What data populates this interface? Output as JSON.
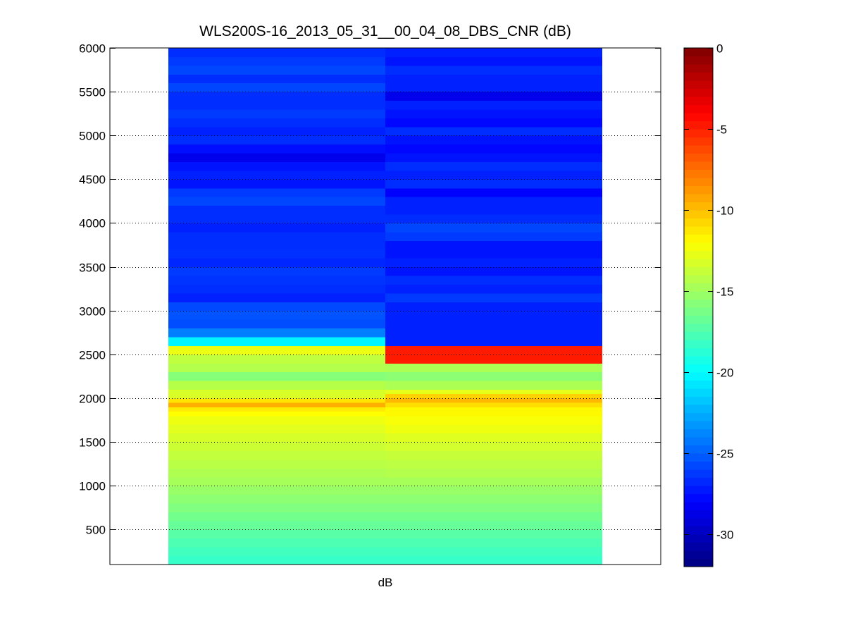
{
  "chart_data": {
    "type": "heatmap",
    "title": "WLS200S-16_2013_05_31__00_04_08_DBS_CNR (dB)",
    "xlabel": "dB",
    "ylabel": "",
    "ylim": [
      100,
      6000
    ],
    "yticks": [
      500,
      1000,
      1500,
      2000,
      2500,
      3000,
      3500,
      4000,
      4500,
      5000,
      5500,
      6000
    ],
    "grid": "y-dotted",
    "colormap": "jet",
    "colorbar": {
      "clim": [
        -32,
        0
      ],
      "ticks": [
        0,
        -5,
        -10,
        -15,
        -20,
        -25,
        -30
      ],
      "placement": "right"
    },
    "row_height_m": 100,
    "columns": [
      {
        "bins": [
          {
            "y0": 100,
            "y1": 200,
            "v": -18.3
          },
          {
            "y0": 200,
            "y1": 300,
            "v": -18.0
          },
          {
            "y0": 300,
            "y1": 400,
            "v": -17.6
          },
          {
            "y0": 400,
            "y1": 500,
            "v": -17.2
          },
          {
            "y0": 500,
            "y1": 600,
            "v": -16.8
          },
          {
            "y0": 600,
            "y1": 700,
            "v": -16.4
          },
          {
            "y0": 700,
            "y1": 800,
            "v": -16.0
          },
          {
            "y0": 800,
            "y1": 900,
            "v": -15.6
          },
          {
            "y0": 900,
            "y1": 1000,
            "v": -15.2
          },
          {
            "y0": 1000,
            "y1": 1100,
            "v": -14.8
          },
          {
            "y0": 1100,
            "y1": 1200,
            "v": -14.5
          },
          {
            "y0": 1200,
            "y1": 1300,
            "v": -14.2
          },
          {
            "y0": 1300,
            "y1": 1400,
            "v": -13.9
          },
          {
            "y0": 1400,
            "y1": 1500,
            "v": -13.6
          },
          {
            "y0": 1500,
            "y1": 1600,
            "v": -13.3
          },
          {
            "y0": 1600,
            "y1": 1700,
            "v": -12.9
          },
          {
            "y0": 1700,
            "y1": 1800,
            "v": -12.5
          },
          {
            "y0": 1800,
            "y1": 1850,
            "v": -12.0
          },
          {
            "y0": 1850,
            "y1": 1900,
            "v": -11.4
          },
          {
            "y0": 1900,
            "y1": 1950,
            "v": -9.5
          },
          {
            "y0": 1950,
            "y1": 2000,
            "v": -11.2
          },
          {
            "y0": 2000,
            "y1": 2100,
            "v": -13.2
          },
          {
            "y0": 2100,
            "y1": 2200,
            "v": -14.3
          },
          {
            "y0": 2200,
            "y1": 2300,
            "v": -15.8
          },
          {
            "y0": 2300,
            "y1": 2400,
            "v": -14.4
          },
          {
            "y0": 2400,
            "y1": 2500,
            "v": -14.0
          },
          {
            "y0": 2500,
            "y1": 2600,
            "v": -12.6
          },
          {
            "y0": 2600,
            "y1": 2700,
            "v": -20.3
          },
          {
            "y0": 2700,
            "y1": 2800,
            "v": -24.0
          },
          {
            "y0": 2800,
            "y1": 2900,
            "v": -25.6
          },
          {
            "y0": 2900,
            "y1": 3000,
            "v": -25.4
          },
          {
            "y0": 3000,
            "y1": 3100,
            "v": -25.7
          },
          {
            "y0": 3100,
            "y1": 3200,
            "v": -27.0
          },
          {
            "y0": 3200,
            "y1": 3300,
            "v": -26.6
          },
          {
            "y0": 3300,
            "y1": 3400,
            "v": -26.4
          },
          {
            "y0": 3400,
            "y1": 3500,
            "v": -26.2
          },
          {
            "y0": 3500,
            "y1": 3600,
            "v": -26.8
          },
          {
            "y0": 3600,
            "y1": 3700,
            "v": -26.5
          },
          {
            "y0": 3700,
            "y1": 3800,
            "v": -26.6
          },
          {
            "y0": 3800,
            "y1": 3900,
            "v": -26.6
          },
          {
            "y0": 3900,
            "y1": 4000,
            "v": -27.0
          },
          {
            "y0": 4000,
            "y1": 4100,
            "v": -26.6
          },
          {
            "y0": 4100,
            "y1": 4200,
            "v": -26.6
          },
          {
            "y0": 4200,
            "y1": 4300,
            "v": -25.8
          },
          {
            "y0": 4300,
            "y1": 4400,
            "v": -26.2
          },
          {
            "y0": 4400,
            "y1": 4500,
            "v": -27.4
          },
          {
            "y0": 4500,
            "y1": 4600,
            "v": -27.0
          },
          {
            "y0": 4600,
            "y1": 4700,
            "v": -27.4
          },
          {
            "y0": 4700,
            "y1": 4800,
            "v": -28.6
          },
          {
            "y0": 4800,
            "y1": 4900,
            "v": -27.6
          },
          {
            "y0": 4900,
            "y1": 5000,
            "v": -26.6
          },
          {
            "y0": 5000,
            "y1": 5100,
            "v": -27.0
          },
          {
            "y0": 5100,
            "y1": 5200,
            "v": -26.6
          },
          {
            "y0": 5200,
            "y1": 5300,
            "v": -26.2
          },
          {
            "y0": 5300,
            "y1": 5400,
            "v": -26.6
          },
          {
            "y0": 5400,
            "y1": 5500,
            "v": -26.6
          },
          {
            "y0": 5500,
            "y1": 5600,
            "v": -25.8
          },
          {
            "y0": 5600,
            "y1": 5700,
            "v": -26.6
          },
          {
            "y0": 5700,
            "y1": 5800,
            "v": -25.8
          },
          {
            "y0": 5800,
            "y1": 5900,
            "v": -26.2
          },
          {
            "y0": 5900,
            "y1": 6000,
            "v": -26.6
          }
        ]
      },
      {
        "bins": [
          {
            "y0": 100,
            "y1": 200,
            "v": -18.3
          },
          {
            "y0": 200,
            "y1": 300,
            "v": -18.0
          },
          {
            "y0": 300,
            "y1": 400,
            "v": -17.6
          },
          {
            "y0": 400,
            "y1": 500,
            "v": -17.2
          },
          {
            "y0": 500,
            "y1": 600,
            "v": -16.8
          },
          {
            "y0": 600,
            "y1": 700,
            "v": -16.4
          },
          {
            "y0": 700,
            "y1": 800,
            "v": -16.0
          },
          {
            "y0": 800,
            "y1": 900,
            "v": -15.6
          },
          {
            "y0": 900,
            "y1": 1000,
            "v": -15.2
          },
          {
            "y0": 1000,
            "y1": 1100,
            "v": -14.8
          },
          {
            "y0": 1100,
            "y1": 1200,
            "v": -14.4
          },
          {
            "y0": 1200,
            "y1": 1300,
            "v": -14.1
          },
          {
            "y0": 1300,
            "y1": 1400,
            "v": -13.8
          },
          {
            "y0": 1400,
            "y1": 1500,
            "v": -13.4
          },
          {
            "y0": 1500,
            "y1": 1600,
            "v": -13.0
          },
          {
            "y0": 1600,
            "y1": 1700,
            "v": -12.5
          },
          {
            "y0": 1700,
            "y1": 1800,
            "v": -12.2
          },
          {
            "y0": 1800,
            "y1": 1900,
            "v": -11.8
          },
          {
            "y0": 1900,
            "y1": 1950,
            "v": -11.0
          },
          {
            "y0": 1950,
            "y1": 2000,
            "v": -9.8
          },
          {
            "y0": 2000,
            "y1": 2050,
            "v": -10.6
          },
          {
            "y0": 2050,
            "y1": 2100,
            "v": -12.8
          },
          {
            "y0": 2100,
            "y1": 2200,
            "v": -14.6
          },
          {
            "y0": 2200,
            "y1": 2300,
            "v": -15.6
          },
          {
            "y0": 2300,
            "y1": 2400,
            "v": -14.6
          },
          {
            "y0": 2400,
            "y1": 2500,
            "v": -4.8
          },
          {
            "y0": 2500,
            "y1": 2600,
            "v": -4.8
          },
          {
            "y0": 2600,
            "y1": 2700,
            "v": -27.0
          },
          {
            "y0": 2700,
            "y1": 2800,
            "v": -27.0
          },
          {
            "y0": 2800,
            "y1": 2900,
            "v": -27.0
          },
          {
            "y0": 2900,
            "y1": 3000,
            "v": -27.0
          },
          {
            "y0": 3000,
            "y1": 3100,
            "v": -27.0
          },
          {
            "y0": 3100,
            "y1": 3200,
            "v": -26.2
          },
          {
            "y0": 3200,
            "y1": 3300,
            "v": -27.0
          },
          {
            "y0": 3300,
            "y1": 3400,
            "v": -26.6
          },
          {
            "y0": 3400,
            "y1": 3500,
            "v": -27.4
          },
          {
            "y0": 3500,
            "y1": 3600,
            "v": -27.0
          },
          {
            "y0": 3600,
            "y1": 3700,
            "v": -27.4
          },
          {
            "y0": 3700,
            "y1": 3800,
            "v": -27.4
          },
          {
            "y0": 3800,
            "y1": 3900,
            "v": -26.2
          },
          {
            "y0": 3900,
            "y1": 4000,
            "v": -25.8
          },
          {
            "y0": 4000,
            "y1": 4100,
            "v": -26.6
          },
          {
            "y0": 4100,
            "y1": 4200,
            "v": -27.0
          },
          {
            "y0": 4200,
            "y1": 4300,
            "v": -27.0
          },
          {
            "y0": 4300,
            "y1": 4400,
            "v": -28.0
          },
          {
            "y0": 4400,
            "y1": 4500,
            "v": -26.6
          },
          {
            "y0": 4500,
            "y1": 4600,
            "v": -27.0
          },
          {
            "y0": 4600,
            "y1": 4700,
            "v": -26.6
          },
          {
            "y0": 4700,
            "y1": 4800,
            "v": -27.4
          },
          {
            "y0": 4800,
            "y1": 4900,
            "v": -27.8
          },
          {
            "y0": 4900,
            "y1": 5000,
            "v": -27.4
          },
          {
            "y0": 5000,
            "y1": 5100,
            "v": -26.6
          },
          {
            "y0": 5100,
            "y1": 5200,
            "v": -27.8
          },
          {
            "y0": 5200,
            "y1": 5300,
            "v": -27.4
          },
          {
            "y0": 5300,
            "y1": 5400,
            "v": -27.0
          },
          {
            "y0": 5400,
            "y1": 5500,
            "v": -28.6
          },
          {
            "y0": 5500,
            "y1": 5600,
            "v": -27.0
          },
          {
            "y0": 5600,
            "y1": 5700,
            "v": -27.0
          },
          {
            "y0": 5700,
            "y1": 5800,
            "v": -26.6
          },
          {
            "y0": 5800,
            "y1": 5900,
            "v": -27.4
          },
          {
            "y0": 5900,
            "y1": 6000,
            "v": -27.0
          }
        ]
      }
    ]
  }
}
